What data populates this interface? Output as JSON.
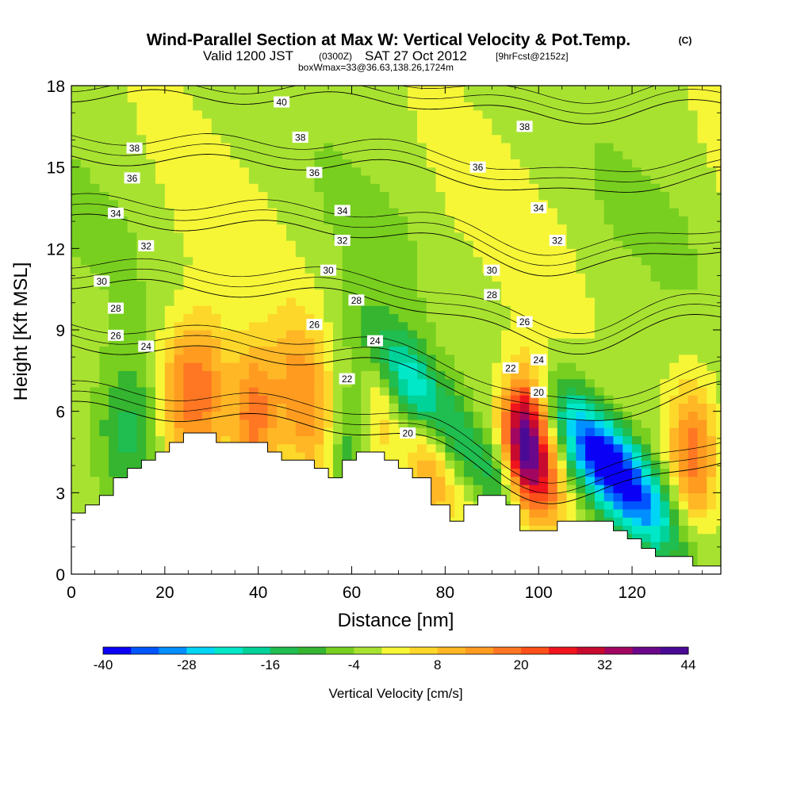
{
  "header": {
    "title": "Wind-Parallel Section at Max W: Vertical Velocity & Pot.Temp.",
    "title_mark": "(C)",
    "valid_prefix": "Valid 1200 JST",
    "valid_utc": "(0300Z)",
    "valid_date": "SAT 27 Oct 2012",
    "forecast_note": "[9hrFcst@2152z]",
    "boxwmax": "boxWmax=33@36.63,138.26,1724m"
  },
  "chart_data": {
    "type": "heatmap",
    "title": "Wind-Parallel Section at Max W: Vertical Velocity & Pot.Temp.",
    "xlabel": "Distance [nm]",
    "ylabel": "Height [Kft MSL]",
    "xlim": [
      0,
      139
    ],
    "ylim": [
      0,
      18
    ],
    "xticks": [
      0,
      20,
      40,
      60,
      80,
      100,
      120
    ],
    "yticks": [
      0,
      3,
      6,
      9,
      12,
      15,
      18
    ],
    "xtick_labels": [
      "0",
      "20",
      "40",
      "60",
      "80",
      "100",
      "120"
    ],
    "ytick_labels": [
      "0",
      "3",
      "6",
      "9",
      "12",
      "15",
      "18"
    ],
    "colorbar": {
      "label": "Vertical Velocity [cm/s]",
      "min": -40,
      "max": 44,
      "step": 4,
      "tick_values": [
        -40,
        -28,
        -16,
        -4,
        8,
        20,
        32,
        44
      ],
      "tick_labels": [
        "-40",
        "-28",
        "-16",
        "-4",
        "8",
        "20",
        "32",
        "44"
      ],
      "colors": [
        "#0a00f5",
        "#0055ff",
        "#008fff",
        "#00d5f5",
        "#00e8c8",
        "#00d39a",
        "#20bd50",
        "#35b530",
        "#78cf1f",
        "#a8e231",
        "#f6f637",
        "#fdd72a",
        "#ffb726",
        "#ff9c20",
        "#ff7722",
        "#ff501a",
        "#f0141c",
        "#c80a2f",
        "#a10760",
        "#6b078a",
        "#4a0a95"
      ]
    },
    "terrain_profile": [
      [
        0,
        2.25
      ],
      [
        3,
        2.25
      ],
      [
        3,
        2.55
      ],
      [
        6,
        2.55
      ],
      [
        6,
        2.9
      ],
      [
        9,
        2.9
      ],
      [
        9,
        3.55
      ],
      [
        12,
        3.55
      ],
      [
        12,
        3.9
      ],
      [
        15,
        3.9
      ],
      [
        15,
        4.2
      ],
      [
        18,
        4.2
      ],
      [
        18,
        4.5
      ],
      [
        21,
        4.5
      ],
      [
        21,
        4.85
      ],
      [
        24,
        4.85
      ],
      [
        24,
        5.2
      ],
      [
        31,
        5.2
      ],
      [
        31,
        4.85
      ],
      [
        42,
        4.85
      ],
      [
        42,
        4.5
      ],
      [
        45,
        4.5
      ],
      [
        45,
        4.2
      ],
      [
        52,
        4.2
      ],
      [
        52,
        3.9
      ],
      [
        55,
        3.9
      ],
      [
        55,
        3.55
      ],
      [
        58,
        3.55
      ],
      [
        58,
        4.2
      ],
      [
        61,
        4.2
      ],
      [
        61,
        4.5
      ],
      [
        67,
        4.5
      ],
      [
        67,
        4.2
      ],
      [
        70,
        4.2
      ],
      [
        70,
        3.9
      ],
      [
        73,
        3.9
      ],
      [
        73,
        3.55
      ],
      [
        77,
        3.55
      ],
      [
        77,
        2.55
      ],
      [
        81,
        2.55
      ],
      [
        81,
        1.95
      ],
      [
        84,
        1.95
      ],
      [
        84,
        2.55
      ],
      [
        87,
        2.55
      ],
      [
        87,
        2.9
      ],
      [
        93,
        2.9
      ],
      [
        93,
        2.55
      ],
      [
        96,
        2.55
      ],
      [
        96,
        1.6
      ],
      [
        104,
        1.6
      ],
      [
        104,
        1.95
      ],
      [
        116,
        1.95
      ],
      [
        116,
        1.6
      ],
      [
        119,
        1.6
      ],
      [
        119,
        1.3
      ],
      [
        122,
        1.3
      ],
      [
        122,
        0.95
      ],
      [
        125,
        0.95
      ],
      [
        125,
        0.65
      ],
      [
        133,
        0.65
      ],
      [
        133,
        0.3
      ],
      [
        139,
        0.3
      ]
    ],
    "theta_contours": [
      {
        "level": 20,
        "label": "20"
      },
      {
        "level": 22,
        "label": "22"
      },
      {
        "level": 24,
        "label": "24"
      },
      {
        "level": 26,
        "label": "26"
      },
      {
        "level": 28,
        "label": "28"
      },
      {
        "level": 30,
        "label": "30"
      },
      {
        "level": 32,
        "label": "32"
      },
      {
        "level": 34,
        "label": "34"
      },
      {
        "level": 36,
        "label": "36"
      },
      {
        "level": 38,
        "label": "38"
      },
      {
        "level": 40,
        "label": "40"
      }
    ],
    "contour_labels": [
      {
        "text": "40",
        "x": 45,
        "y": 17.4
      },
      {
        "text": "38",
        "x": 13.5,
        "y": 15.7
      },
      {
        "text": "38",
        "x": 49,
        "y": 16.1
      },
      {
        "text": "38",
        "x": 97,
        "y": 16.5
      },
      {
        "text": "36",
        "x": 13,
        "y": 14.6
      },
      {
        "text": "36",
        "x": 52,
        "y": 14.8
      },
      {
        "text": "36",
        "x": 87,
        "y": 15.0
      },
      {
        "text": "34",
        "x": 9.5,
        "y": 13.3
      },
      {
        "text": "34",
        "x": 58,
        "y": 13.4
      },
      {
        "text": "34",
        "x": 100,
        "y": 13.5
      },
      {
        "text": "32",
        "x": 16,
        "y": 12.1
      },
      {
        "text": "32",
        "x": 58,
        "y": 12.3
      },
      {
        "text": "32",
        "x": 104,
        "y": 12.3
      },
      {
        "text": "30",
        "x": 6.5,
        "y": 10.8
      },
      {
        "text": "30",
        "x": 55,
        "y": 11.2
      },
      {
        "text": "30",
        "x": 90,
        "y": 11.2
      },
      {
        "text": "28",
        "x": 9.5,
        "y": 9.8
      },
      {
        "text": "28",
        "x": 61,
        "y": 10.1
      },
      {
        "text": "28",
        "x": 90,
        "y": 10.3
      },
      {
        "text": "26",
        "x": 9.5,
        "y": 8.8
      },
      {
        "text": "26",
        "x": 52,
        "y": 9.2
      },
      {
        "text": "26",
        "x": 97,
        "y": 9.3
      },
      {
        "text": "24",
        "x": 16,
        "y": 8.4
      },
      {
        "text": "24",
        "x": 65,
        "y": 8.6
      },
      {
        "text": "24",
        "x": 100,
        "y": 7.9
      },
      {
        "text": "22",
        "x": 59,
        "y": 7.2
      },
      {
        "text": "22",
        "x": 94,
        "y": 7.6
      },
      {
        "text": "20",
        "x": 72,
        "y": 5.2
      },
      {
        "text": "20",
        "x": 100,
        "y": 6.7
      }
    ],
    "features": [
      {
        "kind": "updraft",
        "x": 23,
        "y": 6.6,
        "w": 16
      },
      {
        "kind": "updraft",
        "x": 29,
        "y": 6.8,
        "w": 16
      },
      {
        "kind": "updraft",
        "x": 39,
        "y": 5.8,
        "w": 20
      },
      {
        "kind": "updraft",
        "x": 48,
        "y": 7.0,
        "w": 12
      },
      {
        "kind": "updraft",
        "x": 53,
        "y": 5.4,
        "w": 12
      },
      {
        "kind": "updraft",
        "x": 66,
        "y": 6.0,
        "w": 12
      },
      {
        "kind": "updraft",
        "x": 77,
        "y": 4.4,
        "w": 16
      },
      {
        "kind": "updraft",
        "x": 86,
        "y": 4.0,
        "w": 8
      },
      {
        "kind": "updraft",
        "x": 97,
        "y": 4.8,
        "w": 44
      },
      {
        "kind": "updraft",
        "x": 102,
        "y": 3.0,
        "w": 16
      },
      {
        "kind": "updraft",
        "x": 133,
        "y": 4.4,
        "w": 20
      },
      {
        "kind": "downdraft",
        "x": 74,
        "y": 6.8,
        "w": -24
      },
      {
        "kind": "downdraft",
        "x": 92,
        "y": 3.3,
        "w": -16
      },
      {
        "kind": "downdraft",
        "x": 111,
        "y": 4.4,
        "w": -24
      },
      {
        "kind": "downdraft",
        "x": 120,
        "y": 3.4,
        "w": -28
      },
      {
        "kind": "downdraft",
        "x": 12,
        "y": 5.2,
        "w": -12
      },
      {
        "kind": "downdraft",
        "x": 60,
        "y": 5.0,
        "w": -12
      }
    ]
  }
}
